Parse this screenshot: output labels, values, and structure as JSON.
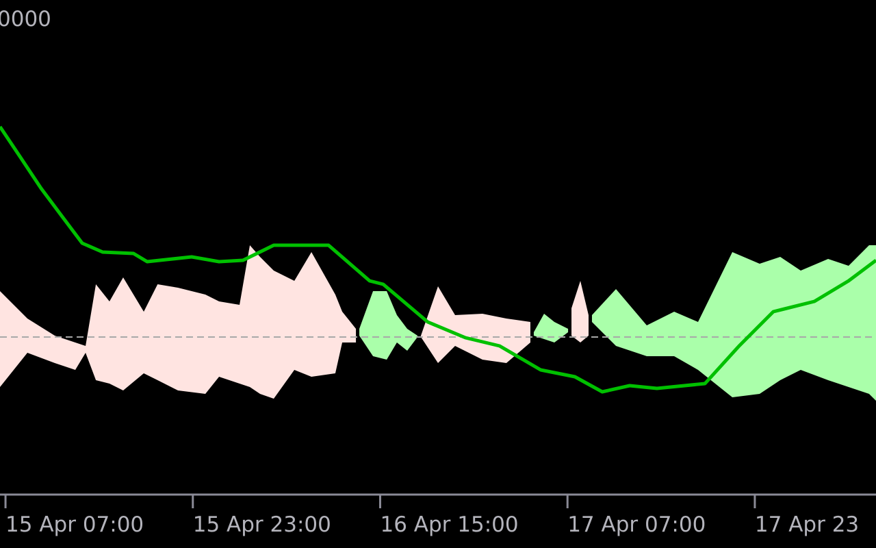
{
  "chart_data": {
    "type": "band-line",
    "axis_label": "0000",
    "xlim": [
      -0.47,
      74.35
    ],
    "ylim": [
      -2.28,
      4.92
    ],
    "xticks": [
      {
        "value": 0,
        "label": "15 Apr 07:00"
      },
      {
        "value": 16,
        "label": "15 Apr 23:00"
      },
      {
        "value": 32,
        "label": "16 Apr 15:00"
      },
      {
        "value": 48,
        "label": "17 Apr 07:00"
      },
      {
        "value": 64,
        "label": "17 Apr 23"
      }
    ],
    "line": {
      "color": "#00c000",
      "x": [
        -0.47,
        1.29,
        3.04,
        4.79,
        6.55,
        8.3,
        10.93,
        12.1,
        15.9,
        18.24,
        20.28,
        22.91,
        27.59,
        31.1,
        32.26,
        36.06,
        39.28,
        42.2,
        45.71,
        48.63,
        50.97,
        53.31,
        55.64,
        59.74,
        62.66,
        65.58,
        69.09,
        72.01,
        74.35
      ],
      "values": [
        3.07,
        2.62,
        2.17,
        1.77,
        1.37,
        1.24,
        1.22,
        1.1,
        1.17,
        1.1,
        1.12,
        1.34,
        1.34,
        0.82,
        0.77,
        0.22,
        -0.01,
        -0.13,
        -0.48,
        -0.58,
        -0.8,
        -0.71,
        -0.75,
        -0.68,
        -0.13,
        0.37,
        0.52,
        0.82,
        1.12
      ]
    },
    "bands": [
      {
        "color": "#ffe4e1",
        "x": [
          -0.47,
          1.87,
          4.21,
          5.96,
          6.84,
          7.72,
          8.88,
          10.05,
          11.81,
          12.99,
          14.73,
          17.07,
          18.24,
          19.99,
          20.87,
          21.74,
          22.91,
          24.67,
          26.13,
          28.17,
          28.76,
          29.93
        ],
        "upper": [
          0.67,
          0.27,
          0.02,
          -0.08,
          -0.13,
          0.77,
          0.52,
          0.87,
          0.37,
          0.77,
          0.72,
          0.62,
          0.52,
          0.47,
          1.34,
          1.17,
          0.97,
          0.82,
          1.24,
          0.62,
          0.37,
          0.12
        ],
        "lower": [
          -0.73,
          -0.23,
          -0.38,
          -0.48,
          -0.23,
          -0.63,
          -0.68,
          -0.78,
          -0.53,
          -0.63,
          -0.78,
          -0.83,
          -0.58,
          -0.68,
          -0.73,
          -0.83,
          -0.9,
          -0.48,
          -0.58,
          -0.53,
          -0.08,
          -0.08
        ]
      },
      {
        "color": "#aaffaa",
        "x": [
          30.22,
          31.39,
          32.56,
          33.43,
          34.31,
          35.19
        ],
        "upper": [
          0.12,
          0.67,
          0.67,
          0.32,
          0.12,
          0.02
        ],
        "lower": [
          0.02,
          -0.28,
          -0.33,
          -0.08,
          -0.2,
          0
        ]
      },
      {
        "color": "#ffe4e1",
        "x": [
          35.48,
          36.94,
          38.4,
          40.74,
          42.78,
          44.83
        ],
        "upper": [
          0.02,
          0.74,
          0.32,
          0.34,
          0.27,
          0.22
        ],
        "lower": [
          0,
          -0.38,
          -0.13,
          -0.33,
          -0.38,
          -0.08
        ]
      },
      {
        "color": "#aaffaa",
        "x": [
          45.12,
          46.0,
          46.88,
          48.05
        ],
        "upper": [
          0.07,
          0.34,
          0.22,
          0.12
        ],
        "lower": [
          0.02,
          -0.03,
          -0.08,
          0.07
        ]
      },
      {
        "color": "#ffe4e1",
        "x": [
          48.34,
          49.1,
          49.8
        ],
        "upper": [
          0.42,
          0.82,
          0.32
        ],
        "lower": [
          0.02,
          -0.08,
          0.02
        ]
      },
      {
        "color": "#aaffaa",
        "x": [
          50.09,
          52.14,
          54.77,
          57.11,
          59.15,
          62.08,
          64.41,
          66.17,
          67.92,
          70.26,
          72.01,
          73.76,
          74.35
        ],
        "upper": [
          0.32,
          0.7,
          0.17,
          0.37,
          0.22,
          1.24,
          1.07,
          1.17,
          0.97,
          1.14,
          1.04,
          1.34,
          1.34
        ],
        "lower": [
          0.22,
          -0.13,
          -0.28,
          -0.28,
          -0.48,
          -0.88,
          -0.83,
          -0.63,
          -0.48,
          -0.63,
          -0.73,
          -0.83,
          -0.93
        ]
      }
    ]
  }
}
